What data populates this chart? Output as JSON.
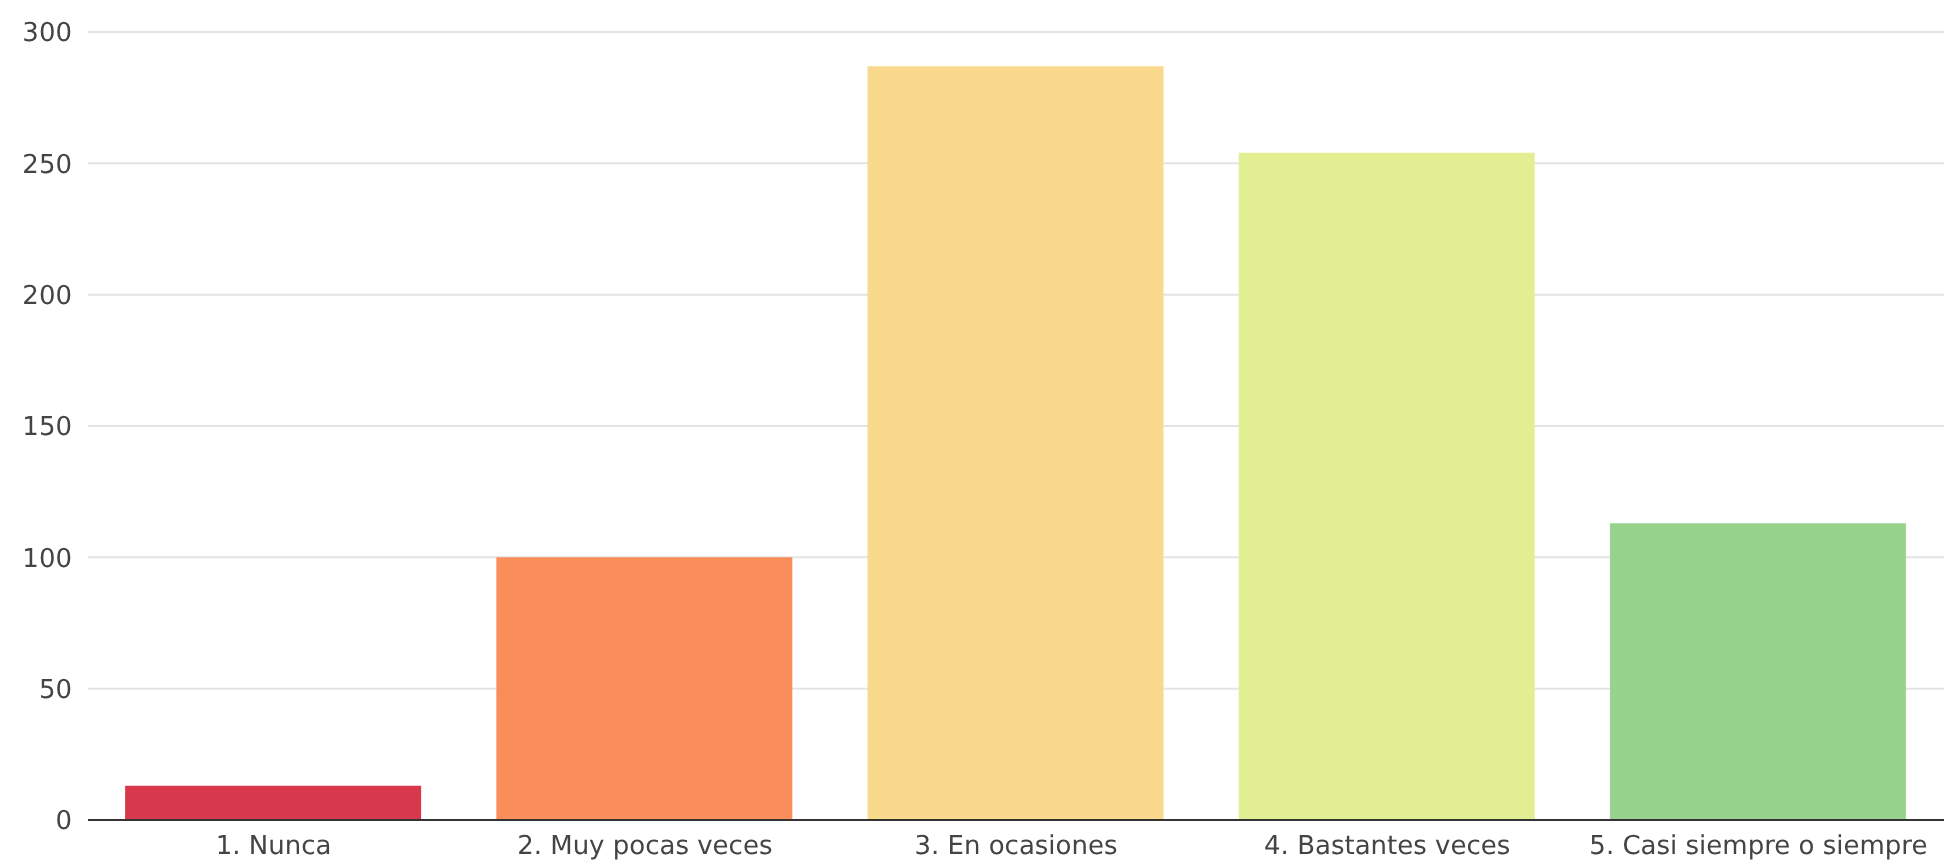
{
  "chart_data": {
    "type": "bar",
    "categories": [
      "1. Nunca",
      "2. Muy pocas veces",
      "3. En ocasiones",
      "4. Bastantes veces",
      "5. Casi siempre o siempre"
    ],
    "values": [
      13,
      100,
      287,
      254,
      113
    ],
    "colors": [
      "#d7384b",
      "#fa8e5b",
      "#f9d98b",
      "#e1ef92",
      "#98d38e"
    ],
    "ylim": [
      0,
      300
    ],
    "yticks": [
      0,
      50,
      100,
      150,
      200,
      250,
      300
    ],
    "grid": "y"
  }
}
